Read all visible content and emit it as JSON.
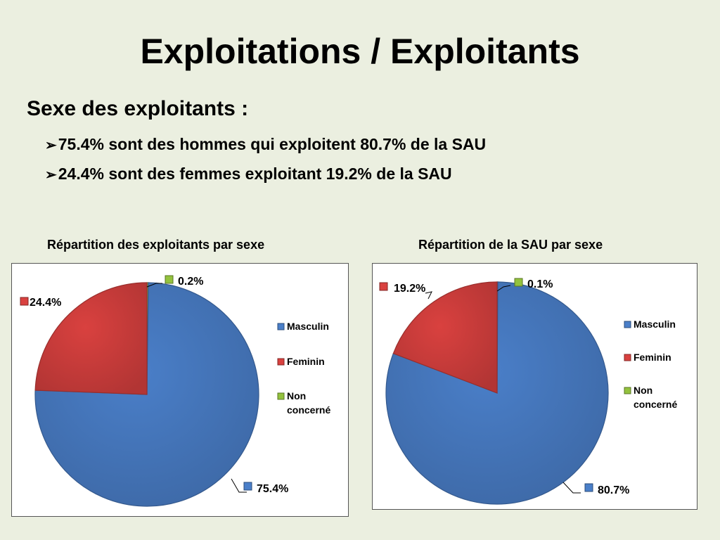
{
  "slide": {
    "title": "Exploitations / Exploitants",
    "subtitle": "Sexe des exploitants :",
    "bullets": [
      "75.4% sont des hommes qui exploitent  80.7% de la SAU",
      "24.4% sont des femmes exploitant 19.2% de la SAU"
    ]
  },
  "colors": {
    "masculin": "#4a7fc9",
    "feminin": "#d9413f",
    "non_concerne": "#93c23d"
  },
  "chart_data": [
    {
      "type": "pie",
      "title": "Répartition des exploitants par sexe",
      "categories": [
        "Masculin",
        "Feminin",
        "Non concerné"
      ],
      "values": [
        75.4,
        24.4,
        0.2
      ],
      "data_labels": [
        "75.4%",
        "24.4%",
        "0.2%"
      ],
      "legend": [
        "Masculin",
        "Feminin",
        "Non concerné"
      ],
      "legend_position": "right"
    },
    {
      "type": "pie",
      "title": "Répartition de la SAU par sexe",
      "categories": [
        "Masculin",
        "Feminin",
        "Non concerné"
      ],
      "values": [
        80.7,
        19.2,
        0.1
      ],
      "data_labels": [
        "80.7%",
        "19.2%",
        "0.1%"
      ],
      "legend": [
        "Masculin",
        "Feminin",
        "Non concerné"
      ],
      "legend_position": "right"
    }
  ]
}
